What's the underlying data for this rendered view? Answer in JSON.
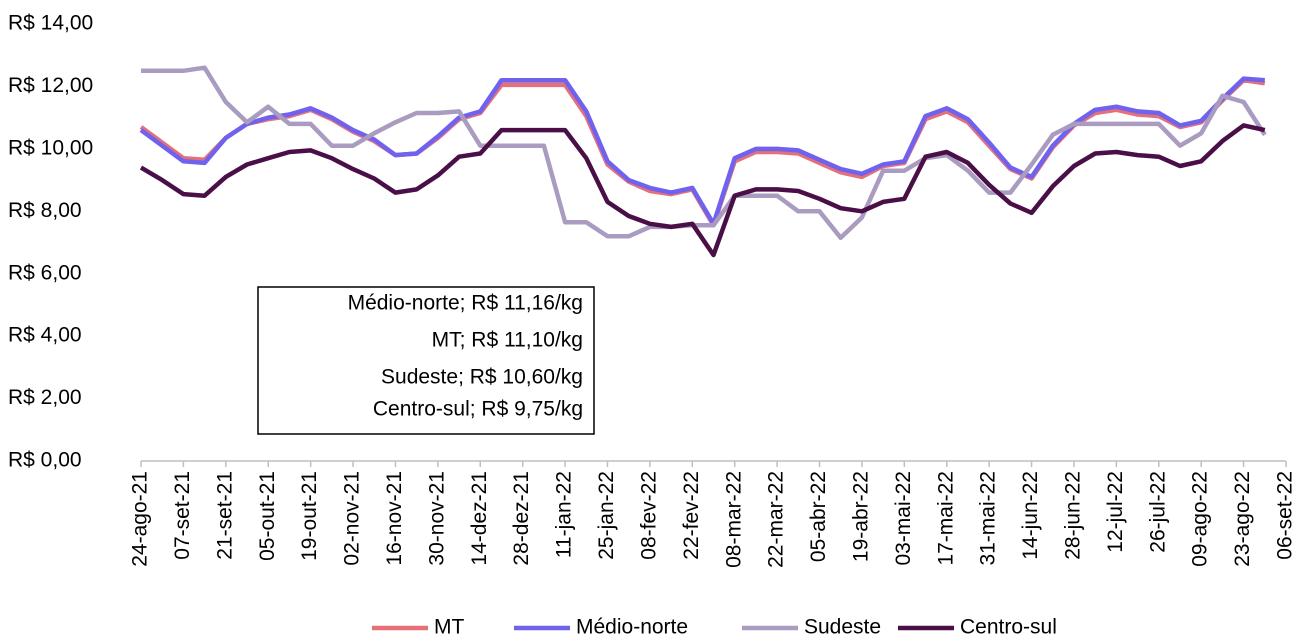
{
  "chart_data": {
    "type": "line",
    "categories": [
      "24-ago-21",
      null,
      "07-set-21",
      null,
      "21-set-21",
      null,
      "05-out-21",
      null,
      "19-out-21",
      null,
      "02-nov-21",
      null,
      "16-nov-21",
      null,
      "30-nov-21",
      null,
      "14-dez-21",
      null,
      "28-dez-21",
      null,
      "11-jan-22",
      null,
      "25-jan-22",
      null,
      "08-fev-22",
      null,
      "22-fev-22",
      null,
      "08-mar-22",
      null,
      "22-mar-22",
      null,
      "05-abr-22",
      null,
      "19-abr-22",
      null,
      "03-mai-22",
      null,
      "17-mai-22",
      null,
      "31-mai-22",
      null,
      "14-jun-22",
      null,
      "28-jun-22",
      null,
      "12-jul-22",
      null,
      "26-jul-22",
      null,
      "09-ago-22",
      null,
      "23-ago-22",
      null,
      "06-set-22"
    ],
    "series": [
      {
        "name": "MT",
        "color": "#e4717a",
        "values": [
          10.7,
          10.2,
          9.7,
          9.65,
          10.35,
          10.8,
          10.95,
          11.05,
          11.25,
          10.95,
          10.55,
          10.25,
          9.8,
          9.85,
          10.35,
          10.95,
          11.15,
          12.05,
          12.05,
          12.05,
          12.05,
          11.05,
          9.5,
          8.95,
          8.65,
          8.55,
          8.7,
          7.55,
          9.6,
          9.9,
          9.9,
          9.85,
          9.55,
          9.25,
          9.1,
          9.45,
          9.55,
          10.95,
          11.2,
          10.85,
          10.1,
          9.35,
          9.05,
          10.05,
          10.75,
          11.15,
          11.25,
          11.1,
          11.05,
          10.7,
          10.85,
          11.55,
          12.2,
          12.1,
          null
        ]
      },
      {
        "name": "Médio-norte",
        "color": "#6f62ee",
        "values": [
          10.6,
          10.1,
          9.6,
          9.55,
          10.35,
          10.8,
          11.0,
          11.1,
          11.3,
          11.0,
          10.6,
          10.3,
          9.8,
          9.85,
          10.4,
          11.0,
          11.2,
          12.2,
          12.2,
          12.2,
          12.2,
          11.2,
          9.6,
          9.0,
          8.75,
          8.6,
          8.75,
          7.6,
          9.7,
          10.0,
          10.0,
          9.95,
          9.65,
          9.35,
          9.2,
          9.5,
          9.6,
          11.05,
          11.3,
          10.95,
          10.2,
          9.4,
          9.1,
          10.1,
          10.8,
          11.25,
          11.35,
          11.2,
          11.15,
          10.75,
          10.9,
          11.6,
          12.25,
          12.2,
          null
        ]
      },
      {
        "name": "Sudeste",
        "color": "#a99cc0",
        "values": [
          12.5,
          12.5,
          12.5,
          12.6,
          11.5,
          10.85,
          11.35,
          10.8,
          10.8,
          10.1,
          10.1,
          10.5,
          10.85,
          11.15,
          11.15,
          11.2,
          10.1,
          10.1,
          10.1,
          10.1,
          7.65,
          7.65,
          7.2,
          7.2,
          7.5,
          7.5,
          7.55,
          7.55,
          8.5,
          8.5,
          8.5,
          8.0,
          8.0,
          7.15,
          7.8,
          9.3,
          9.3,
          9.7,
          9.8,
          9.3,
          8.6,
          8.6,
          9.5,
          10.45,
          10.8,
          10.8,
          10.8,
          10.8,
          10.8,
          10.1,
          10.5,
          11.7,
          11.5,
          10.45,
          null
        ]
      },
      {
        "name": "Centro-sul",
        "color": "#4a0f47",
        "values": [
          9.4,
          9.0,
          8.55,
          8.5,
          9.1,
          9.5,
          9.7,
          9.9,
          9.95,
          9.7,
          9.35,
          9.05,
          8.6,
          8.7,
          9.15,
          9.75,
          9.85,
          10.6,
          10.6,
          10.6,
          10.6,
          9.7,
          8.3,
          7.85,
          7.6,
          7.5,
          7.6,
          6.6,
          8.5,
          8.7,
          8.7,
          8.65,
          8.4,
          8.1,
          8.0,
          8.3,
          8.4,
          9.75,
          9.9,
          9.55,
          8.85,
          8.25,
          7.95,
          8.8,
          9.45,
          9.85,
          9.9,
          9.8,
          9.75,
          9.45,
          9.6,
          10.25,
          10.75,
          10.6,
          null
        ]
      }
    ],
    "ylim": [
      0,
      14
    ],
    "yticks": [
      {
        "value": 0,
        "label": "R$ 0,00"
      },
      {
        "value": 2,
        "label": "R$ 2,00"
      },
      {
        "value": 4,
        "label": "R$ 4,00"
      },
      {
        "value": 6,
        "label": "R$ 6,00"
      },
      {
        "value": 8,
        "label": "R$ 8,00"
      },
      {
        "value": 10,
        "label": "R$ 10,00"
      },
      {
        "value": 12,
        "label": "R$ 12,00"
      },
      {
        "value": 14,
        "label": "R$ 14,00"
      }
    ],
    "annotations": [
      "Médio-norte; R$ 11,16/kg",
      "MT; R$ 11,10/kg",
      "Sudeste; R$ 10,60/kg",
      "Centro-sul; R$ 9,75/kg"
    ],
    "legend": "bottom",
    "grid": false
  }
}
